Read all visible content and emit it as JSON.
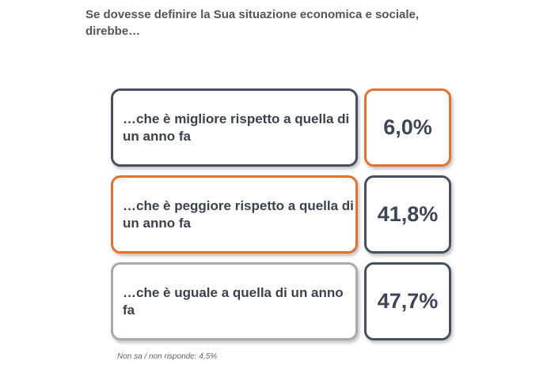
{
  "title": "Se dovesse definire la Sua situazione economica e sociale, direbbe…",
  "items": [
    {
      "label": "…che è migliore rispetto a quella di un anno fa",
      "value": "6,0%"
    },
    {
      "label": "…che è peggiore rispetto a quella di un anno fa",
      "value": "41,8%"
    },
    {
      "label": "…che è uguale a quella di un anno fa",
      "value": "47,7%"
    }
  ],
  "note": "Non sa / non risponde: 4,5%"
}
